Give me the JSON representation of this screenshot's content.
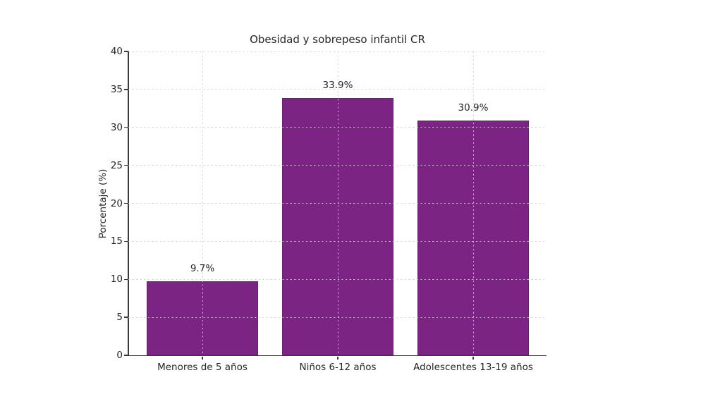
{
  "chart_data": {
    "type": "bar",
    "title": "Obesidad y sobrepeso infantil CR",
    "xlabel": "",
    "ylabel": "Porcentaje (%)",
    "categories": [
      "Menores de 5 años",
      "Niños 6-12 años",
      "Adolescentes 13-19 años"
    ],
    "values": [
      9.7,
      33.9,
      30.9
    ],
    "value_labels": [
      "9.7%",
      "33.9%",
      "30.9%"
    ],
    "ylim": [
      0,
      40
    ],
    "yticks": [
      0,
      5,
      10,
      15,
      20,
      25,
      30,
      35,
      40
    ],
    "grid": "dotted, horizontal at y-ticks and vertical at bar centers, drawn over bars",
    "legend_position": "none",
    "bar_color": "#7C2483",
    "bar_edge_color": "#6B1D72",
    "spine_color": "#3A3A3A",
    "text_color": "#262626",
    "background_color": "#FFFFFF"
  }
}
